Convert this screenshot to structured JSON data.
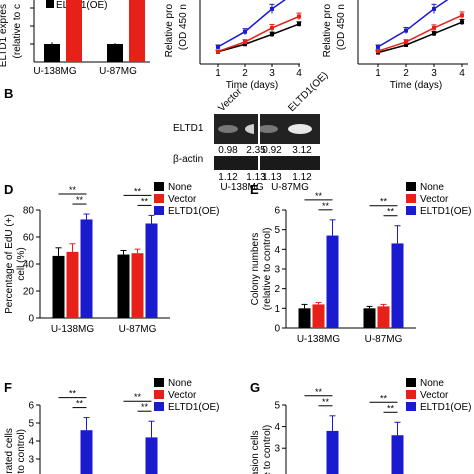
{
  "panel_labels": {
    "b": "B",
    "d": "D",
    "e": "E",
    "f": "F",
    "g": "G"
  },
  "panel_a": {
    "ylabel_line1": "ELTD1 expres",
    "ylabel_line2": "(relative to c",
    "legend_text": "ELTD1(OE)",
    "categories": [
      "U-138MG",
      "U-87MG"
    ]
  },
  "growth_left": {
    "ylabel_line1": "Relative pro",
    "ylabel_line2": "(OD 450 n",
    "xlabel": "Time (days)",
    "ticks": [
      "1",
      "2",
      "3",
      "4"
    ]
  },
  "growth_right": {
    "ylabel_line1": "Relative pro",
    "ylabel_line2": "(OD 450 n",
    "xlabel": "Time (days)",
    "ticks": [
      "1",
      "2",
      "3",
      "4"
    ]
  },
  "western": {
    "eltd1_label": "ELTD1",
    "actin_label": "β-actin",
    "lane_vector": "Vector",
    "lane_oe": "ELTD1(OE)",
    "eltd1_values": [
      "0.98",
      "2.35",
      "0.92",
      "3.12"
    ],
    "actin_values": [
      "1.12",
      "1.13",
      "1.13",
      "1.12"
    ],
    "cell_lines": [
      "U-138MG",
      "U-87MG"
    ]
  },
  "colors": {
    "none": "#000000",
    "vector": "#e8201a",
    "oe": "#1a1acf"
  },
  "chart_data": [
    {
      "panel": "D",
      "type": "bar",
      "categories": [
        "U-138MG",
        "U-87MG"
      ],
      "series": [
        {
          "name": "None",
          "values": [
            46,
            47
          ],
          "errors": [
            6,
            3
          ]
        },
        {
          "name": "Vector",
          "values": [
            49,
            48
          ],
          "errors": [
            6,
            3
          ]
        },
        {
          "name": "ELTD1(OE)",
          "values": [
            73,
            70
          ],
          "errors": [
            4,
            6
          ]
        }
      ],
      "ylabel_line1": "Percentage of EdU (+)",
      "ylabel_line2": "cell (%)",
      "ylim": [
        0,
        80
      ],
      "yticks": [
        "0",
        "20",
        "40",
        "60",
        "80"
      ],
      "significance": [
        "**",
        "**",
        "**",
        "**"
      ],
      "legend": "top-right"
    },
    {
      "panel": "E",
      "type": "bar",
      "categories": [
        "U-138MG",
        "U-87MG"
      ],
      "series": [
        {
          "name": "None",
          "values": [
            1.0,
            1.0
          ],
          "errors": [
            0.2,
            0.1
          ]
        },
        {
          "name": "Vector",
          "values": [
            1.2,
            1.1
          ],
          "errors": [
            0.1,
            0.1
          ]
        },
        {
          "name": "ELTD1(OE)",
          "values": [
            4.7,
            4.3
          ],
          "errors": [
            0.8,
            0.9
          ]
        }
      ],
      "ylabel_line1": "Colony numbers",
      "ylabel_line2": "(relative to control)",
      "ylim": [
        0,
        6
      ],
      "yticks": [
        "0",
        "1",
        "2",
        "3",
        "4",
        "5",
        "6"
      ],
      "significance": [
        "**",
        "**",
        "**",
        "**"
      ],
      "legend": "top-right"
    },
    {
      "panel": "F",
      "type": "bar",
      "categories": [
        "U-138MG",
        "U-87MG"
      ],
      "series": [
        {
          "name": "None",
          "values": [
            1.0,
            1.0
          ],
          "errors": [
            0.1,
            0.1
          ]
        },
        {
          "name": "Vector",
          "values": [
            1.1,
            1.1
          ],
          "errors": [
            0.1,
            0.1
          ]
        },
        {
          "name": "ELTD1(OE)",
          "values": [
            4.6,
            4.2
          ],
          "errors": [
            0.7,
            0.9
          ]
        }
      ],
      "ylabel_line1": "migrated cells",
      "ylabel_line2": "ive to control)",
      "ylim": [
        0,
        6
      ],
      "yticks": [
        "6",
        "5",
        "4",
        "3"
      ],
      "significance": [
        "**",
        "**",
        "**",
        "**"
      ],
      "legend": "top-right"
    },
    {
      "panel": "G",
      "type": "bar",
      "categories": [
        "U-138MG",
        "U-87MG"
      ],
      "series": [
        {
          "name": "None",
          "values": [
            1.0,
            1.0
          ],
          "errors": [
            0.1,
            0.1
          ]
        },
        {
          "name": "Vector",
          "values": [
            1.1,
            1.1
          ],
          "errors": [
            0.1,
            0.1
          ]
        },
        {
          "name": "ELTD1(OE)",
          "values": [
            3.8,
            3.6
          ],
          "errors": [
            0.7,
            0.6
          ]
        }
      ],
      "ylabel_line1": "nvasion cells",
      "ylabel_line2": "ative to control)",
      "ylim": [
        0,
        5
      ],
      "yticks": [
        "5",
        "4",
        "3"
      ],
      "significance": [
        "**",
        "**",
        "**",
        "**"
      ],
      "legend": "top-right"
    },
    {
      "panel": "A",
      "type": "bar",
      "categories": [
        "U-138MG",
        "U-87MG"
      ],
      "series": [
        {
          "name": "None",
          "values": [
            1.0,
            1.0
          ],
          "errors": [
            0.1,
            0.05
          ]
        },
        {
          "name": "ELTD1(OE)",
          "values": [
            3.5,
            3.5
          ]
        }
      ],
      "legend": "top-right"
    },
    {
      "panel": "C-left",
      "type": "line",
      "x": [
        1,
        2,
        3,
        4
      ],
      "series": [
        {
          "name": "None",
          "values": [
            0.32,
            0.52,
            0.78,
            1.05
          ],
          "errors": [
            0.04,
            0.05,
            0.06,
            0.06
          ]
        },
        {
          "name": "Vector",
          "values": [
            0.33,
            0.58,
            0.95,
            1.25
          ],
          "errors": [
            0.04,
            0.06,
            0.09,
            0.09
          ]
        },
        {
          "name": "ELTD1(OE)",
          "values": [
            0.45,
            0.85,
            1.45,
            1.95
          ],
          "errors": [
            0.05,
            0.08,
            0.12,
            0.12
          ]
        }
      ],
      "ylim": [
        0,
        1.8
      ],
      "xlabel": "Time (days)",
      "xticks": [
        "1",
        "2",
        "3",
        "4"
      ]
    },
    {
      "panel": "C-right",
      "type": "line",
      "x": [
        1,
        2,
        3,
        4
      ],
      "series": [
        {
          "name": "None",
          "values": [
            0.3,
            0.5,
            0.8,
            1.1
          ],
          "errors": [
            0.04,
            0.05,
            0.06,
            0.07
          ]
        },
        {
          "name": "Vector",
          "values": [
            0.34,
            0.58,
            0.95,
            1.28
          ],
          "errors": [
            0.04,
            0.06,
            0.08,
            0.09
          ]
        },
        {
          "name": "ELTD1(OE)",
          "values": [
            0.45,
            0.88,
            1.45,
            1.95
          ],
          "errors": [
            0.05,
            0.08,
            0.12,
            0.12
          ]
        }
      ],
      "ylim": [
        0,
        1.8
      ],
      "xlabel": "Time (days)",
      "xticks": [
        "1",
        "2",
        "3",
        "4"
      ]
    }
  ]
}
